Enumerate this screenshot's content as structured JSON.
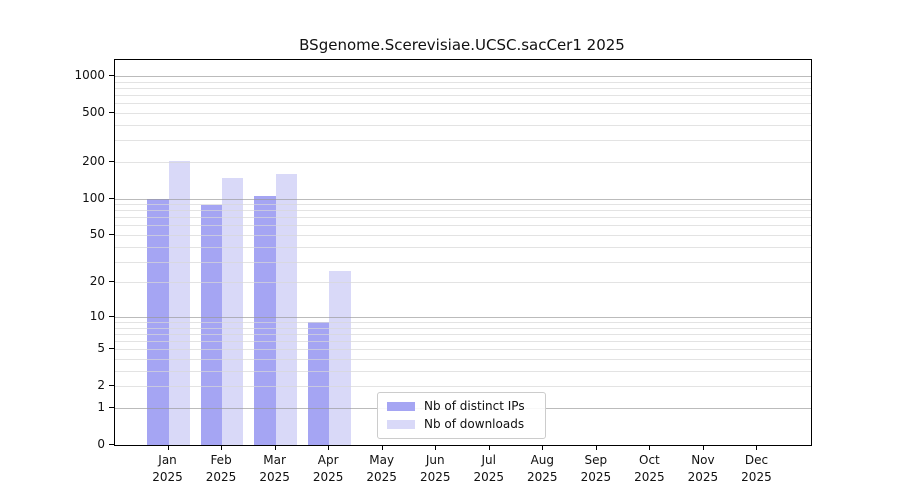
{
  "title": "BSgenome.Scerevisiae.UCSC.sacCer1 2025",
  "colors": {
    "bar_distinct_ips": "#a5a5f3",
    "bar_downloads": "#d9d9f8",
    "axis": "#000000",
    "grid_major": "#bbbbbb",
    "grid_minor": "#ededed",
    "text": "#111111"
  },
  "legend": {
    "items": [
      {
        "label": "Nb of distinct IPs",
        "color_key": "bar_distinct_ips"
      },
      {
        "label": "Nb of downloads",
        "color_key": "bar_downloads"
      }
    ]
  },
  "chart_data": {
    "type": "bar",
    "title": "BSgenome.Scerevisiae.UCSC.sacCer1 2025",
    "categories": [
      "Jan",
      "Feb",
      "Mar",
      "Apr",
      "May",
      "Jun",
      "Jul",
      "Aug",
      "Sep",
      "Oct",
      "Nov",
      "Dec"
    ],
    "year_label": "2025",
    "series": [
      {
        "name": "Nb of distinct IPs",
        "values": [
          100,
          88,
          105,
          9,
          0,
          0,
          0,
          0,
          0,
          0,
          0,
          0
        ]
      },
      {
        "name": "Nb of downloads",
        "values": [
          202,
          148,
          160,
          25,
          0,
          0,
          0,
          0,
          0,
          0,
          0,
          0
        ]
      }
    ],
    "yscale": "log1p",
    "ylim": [
      0,
      1350
    ],
    "yticks": [
      0,
      1,
      2,
      5,
      10,
      20,
      50,
      100,
      200,
      500,
      1000
    ],
    "ytick_labels": [
      "0",
      "1",
      "2",
      "5",
      "10",
      "20",
      "50",
      "100",
      "200",
      "500",
      "1000"
    ],
    "grid": "on",
    "legend_position": "bottom-center-inside",
    "xlabel": "",
    "ylabel": ""
  }
}
